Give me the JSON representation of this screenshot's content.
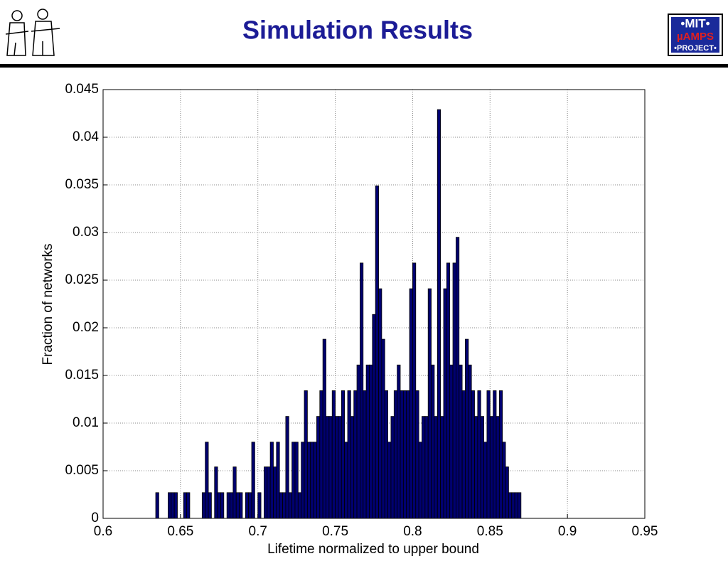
{
  "title": "Simulation Results",
  "logo": {
    "lines": [
      "•MIT•",
      "µAMPS",
      "•PROJECT•"
    ]
  },
  "chart_data": {
    "type": "histogram",
    "x_label": "Lifetime normalized to upper bound",
    "y_label": "Fraction of networks",
    "color": "#000070",
    "grid": true,
    "xlim": [
      0.6,
      0.95
    ],
    "xticks": [
      0.6,
      0.65,
      0.7,
      0.75,
      0.8,
      0.85,
      0.9,
      0.95
    ],
    "ylim": [
      0,
      0.045
    ],
    "yticks": [
      0,
      0.005,
      0.01,
      0.015,
      0.02,
      0.025,
      0.03,
      0.035,
      0.04,
      0.045
    ],
    "bins": [
      0.634,
      0.636,
      0.638,
      0.64,
      0.642,
      0.644,
      0.646,
      0.648,
      0.65,
      0.652,
      0.654,
      0.656,
      0.658,
      0.66,
      0.662,
      0.664,
      0.666,
      0.668,
      0.67,
      0.672,
      0.674,
      0.676,
      0.678,
      0.68,
      0.682,
      0.684,
      0.686,
      0.688,
      0.69,
      0.692,
      0.694,
      0.696,
      0.698,
      0.7,
      0.702,
      0.704,
      0.706,
      0.708,
      0.71,
      0.712,
      0.714,
      0.716,
      0.718,
      0.72,
      0.722,
      0.724,
      0.726,
      0.728,
      0.73,
      0.732,
      0.734,
      0.736,
      0.738,
      0.74,
      0.742,
      0.744,
      0.746,
      0.748,
      0.75,
      0.752,
      0.754,
      0.756,
      0.758,
      0.76,
      0.762,
      0.764,
      0.766,
      0.768,
      0.77,
      0.772,
      0.774,
      0.776,
      0.778,
      0.78,
      0.782,
      0.784,
      0.786,
      0.788,
      0.79,
      0.792,
      0.794,
      0.796,
      0.798,
      0.8,
      0.802,
      0.804,
      0.806,
      0.808,
      0.81,
      0.812,
      0.814,
      0.816,
      0.818,
      0.82,
      0.822,
      0.824,
      0.826,
      0.828,
      0.83,
      0.832,
      0.834,
      0.836,
      0.838,
      0.84,
      0.842,
      0.844,
      0.846,
      0.848,
      0.85,
      0.852,
      0.854,
      0.856,
      0.858,
      0.86,
      0.862,
      0.864,
      0.866,
      0.868,
      0.87
    ],
    "values": [
      0.0027,
      0,
      0,
      0,
      0.0027,
      0.0027,
      0.0027,
      0,
      0,
      0.0027,
      0.0027,
      0,
      0,
      0,
      0,
      0.0027,
      0.008,
      0.0027,
      0,
      0.0054,
      0.0027,
      0.0027,
      0,
      0.0027,
      0.0027,
      0.0054,
      0.0027,
      0.0027,
      0,
      0.0027,
      0.0027,
      0.008,
      0,
      0.0027,
      0,
      0.0054,
      0.0054,
      0.008,
      0.0054,
      0.008,
      0.0027,
      0.0027,
      0.0107,
      0.0027,
      0.008,
      0.008,
      0.0027,
      0.008,
      0.0134,
      0.008,
      0.008,
      0.008,
      0.0107,
      0.0134,
      0.0188,
      0.0107,
      0.0107,
      0.0134,
      0.0107,
      0.0107,
      0.0134,
      0.008,
      0.0134,
      0.0107,
      0.0134,
      0.0161,
      0.0268,
      0.0134,
      0.0161,
      0.0161,
      0.0214,
      0.0349,
      0.0241,
      0.0188,
      0.0134,
      0.008,
      0.0107,
      0.0134,
      0.0161,
      0.0134,
      0.0134,
      0.0134,
      0.0241,
      0.0268,
      0.0134,
      0.008,
      0.0107,
      0.0107,
      0.0241,
      0.0161,
      0.0107,
      0.0429,
      0.0107,
      0.0241,
      0.0268,
      0.0161,
      0.0268,
      0.0295,
      0.0161,
      0.0134,
      0.0188,
      0.0161,
      0.0134,
      0.0107,
      0.0134,
      0.0107,
      0.008,
      0.0134,
      0.0107,
      0.0134,
      0.0107,
      0.0134,
      0.008,
      0.0054,
      0.0027,
      0.0027,
      0.0027,
      0.0027
    ]
  }
}
